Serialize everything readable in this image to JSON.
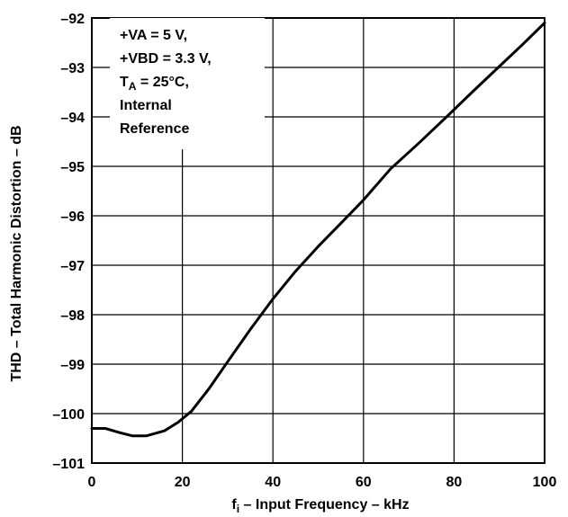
{
  "chart_data": {
    "type": "line",
    "title": "",
    "xlabel": {
      "main": "f",
      "sub": "i",
      "rest": " – Input Frequency – kHz"
    },
    "ylabel": "THD – Total Harmonic Distortion – dB",
    "xlim": [
      0,
      100
    ],
    "ylim": [
      -101,
      -92
    ],
    "x_ticks": [
      0,
      20,
      40,
      60,
      80,
      100
    ],
    "x_tick_labels": [
      "0",
      "20",
      "40",
      "60",
      "80",
      "100"
    ],
    "y_ticks": [
      -92,
      -93,
      -94,
      -95,
      -96,
      -97,
      -98,
      -99,
      -100,
      -101
    ],
    "y_tick_labels": [
      "–92",
      "–93",
      "–94",
      "–95",
      "–96",
      "–97",
      "–98",
      "–99",
      "–100",
      "–101"
    ],
    "grid": true,
    "line_color": "#000000",
    "series": [
      {
        "x": [
          0,
          3,
          6,
          9,
          12,
          16,
          19,
          22,
          26,
          30,
          35,
          40,
          45,
          50,
          55,
          60,
          66,
          72,
          78,
          84,
          90,
          95,
          100
        ],
        "y": [
          -100.3,
          -100.3,
          -100.38,
          -100.45,
          -100.45,
          -100.35,
          -100.18,
          -99.95,
          -99.48,
          -98.95,
          -98.3,
          -97.68,
          -97.12,
          -96.62,
          -96.15,
          -95.68,
          -95.05,
          -94.55,
          -94.03,
          -93.5,
          -92.98,
          -92.55,
          -92.1
        ]
      }
    ],
    "annotation": {
      "line1": "+VA = 5 V,",
      "line2": "+VBD = 3.3 V,",
      "line3_main": "T",
      "line3_sub": "A",
      "line3_rest": " = 25°C,",
      "line4": "Internal",
      "line5": "Reference"
    }
  }
}
